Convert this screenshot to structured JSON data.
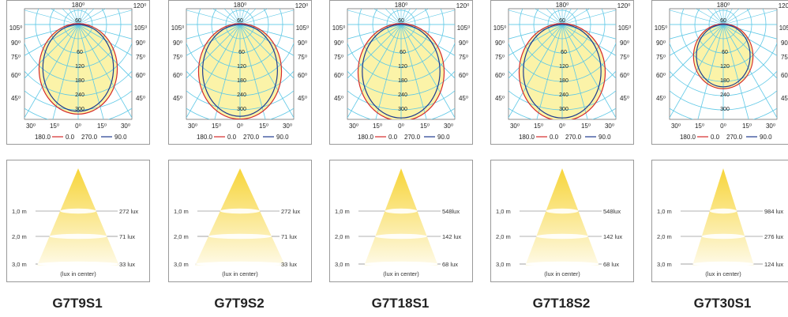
{
  "colors": {
    "grid": "#5ec8e6",
    "fill": "#fbf3a8",
    "curve_c0": "#d42a2a",
    "curve_c90": "#1f3b8f",
    "beam": "#f7d53a",
    "frame": "#9a9a9a"
  },
  "polar_labels": {
    "top_angle": "180⁰",
    "corner_angle": "120⁰",
    "left_angles": [
      "105⁰",
      "90⁰",
      "75⁰",
      "60⁰",
      "45⁰"
    ],
    "right_angles": [
      "105⁰",
      "90⁰",
      "75⁰",
      "60⁰",
      "45⁰"
    ],
    "bottom_angles": [
      "30⁰",
      "15⁰",
      "0⁰",
      "15⁰",
      "30⁰"
    ],
    "top_value": "60",
    "radial_values": [
      "60",
      "120",
      "180",
      "240",
      "300"
    ]
  },
  "legend": {
    "series_a": "180.0",
    "series_a_value": "0.0",
    "series_b": "270.0",
    "series_b_value": "90.0"
  },
  "cone_labels": {
    "distances": [
      "1,0 m",
      "2,0 m",
      "3,0 m"
    ],
    "caption": "(lux in center)"
  },
  "products": [
    {
      "model": "G7T9S1",
      "lux": [
        "272 lux",
        "71 lux",
        "33 lux"
      ],
      "shape": [
        0.5,
        0.53
      ],
      "beam": 0.2
    },
    {
      "model": "G7T9S2",
      "lux": [
        "272 lux",
        "71 lux",
        "33 lux"
      ],
      "shape": [
        0.53,
        0.56
      ],
      "beam": 0.22
    },
    {
      "model": "G7T18S1",
      "lux": [
        "548lux",
        "142 lux",
        "68 lux"
      ],
      "shape": [
        0.55,
        0.57
      ],
      "beam": 0.18
    },
    {
      "model": "G7T18S2",
      "lux": [
        "548lux",
        "142 lux",
        "68 lux"
      ],
      "shape": [
        0.55,
        0.57
      ],
      "beam": 0.18
    },
    {
      "model": "G7T30S1",
      "lux": [
        "984 lux",
        "276 lux",
        "124 lux"
      ],
      "shape": [
        0.38,
        0.38
      ],
      "beam": 0.15
    }
  ]
}
